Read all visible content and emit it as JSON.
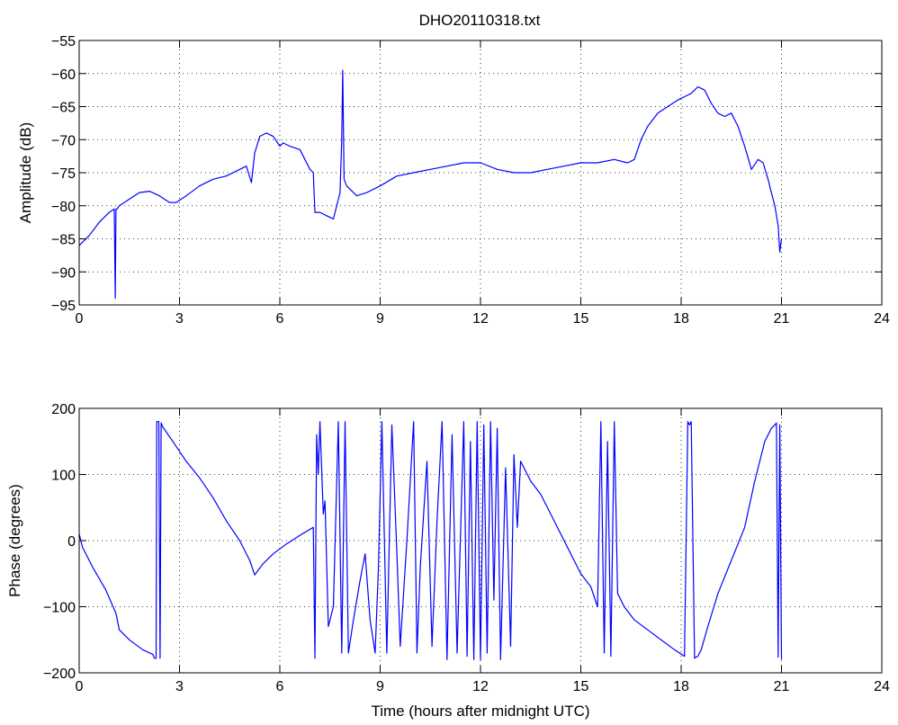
{
  "title": "DHO20110318.txt",
  "chart_data": [
    {
      "type": "line",
      "name": "amplitude",
      "ylabel": "Amplitude (dB)",
      "xlabel": "",
      "xlim": [
        0,
        24
      ],
      "ylim": [
        -95,
        -55
      ],
      "xticks": [
        0,
        3,
        6,
        9,
        12,
        15,
        18,
        21,
        24
      ],
      "xtick_labels": [
        "0",
        "3",
        "6",
        "9",
        "12",
        "15",
        "18",
        "21",
        "24"
      ],
      "yticks": [
        -95,
        -90,
        -85,
        -80,
        -75,
        -70,
        -65,
        -60,
        -55
      ],
      "ytick_labels": [
        "−95",
        "−90",
        "−85",
        "−80",
        "−75",
        "−70",
        "−65",
        "−60",
        "−55"
      ],
      "grid": true,
      "color": "#0000ff",
      "series": [
        {
          "x": [
            0.0,
            0.3,
            0.6,
            0.9,
            1.05,
            1.08,
            1.1,
            1.13,
            1.2,
            1.5,
            1.8,
            2.1,
            2.4,
            2.7,
            2.9,
            3.2,
            3.6,
            4.0,
            4.4,
            4.8,
            5.0,
            5.15,
            5.25,
            5.4,
            5.6,
            5.8,
            6.0,
            6.1,
            6.3,
            6.6,
            6.9,
            7.0,
            7.05,
            7.2,
            7.4,
            7.6,
            7.8,
            7.85,
            7.88,
            7.92,
            8.0,
            8.3,
            8.6,
            9.0,
            9.5,
            10.0,
            10.5,
            11.0,
            11.5,
            12.0,
            12.5,
            13.0,
            13.5,
            14.0,
            14.5,
            15.0,
            15.5,
            16.0,
            16.4,
            16.6,
            16.8,
            17.0,
            17.3,
            17.6,
            17.9,
            18.1,
            18.3,
            18.5,
            18.7,
            18.9,
            19.1,
            19.3,
            19.5,
            19.7,
            19.9,
            20.1,
            20.3,
            20.45,
            20.6,
            20.7,
            20.8,
            20.9,
            20.95,
            21.0
          ],
          "y": [
            -86,
            -84.5,
            -82.5,
            -81,
            -80.5,
            -94,
            -80.5,
            -80.5,
            -80,
            -79,
            -78,
            -77.8,
            -78.5,
            -79.5,
            -79.5,
            -78.5,
            -77,
            -76,
            -75.5,
            -74.5,
            -74,
            -76.5,
            -72,
            -69.5,
            -69,
            -69.5,
            -71,
            -70.5,
            -71,
            -71.5,
            -74.5,
            -75,
            -81,
            -81,
            -81.5,
            -82,
            -78,
            -70,
            -59.5,
            -76,
            -77,
            -78.5,
            -78,
            -77,
            -75.5,
            -75,
            -74.5,
            -74,
            -73.5,
            -73.5,
            -74.5,
            -75,
            -75,
            -74.5,
            -74,
            -73.5,
            -73.5,
            -73,
            -73.5,
            -73,
            -70,
            -68,
            -66,
            -65,
            -64,
            -63.5,
            -63,
            -62,
            -62.5,
            -64.5,
            -66,
            -66.5,
            -66,
            -68,
            -71,
            -74.5,
            -73,
            -73.5,
            -76,
            -78,
            -80,
            -83,
            -87,
            -85
          ]
        }
      ]
    },
    {
      "type": "line",
      "name": "phase",
      "ylabel": "Phase (degrees)",
      "xlabel": "Time (hours after midnight UTC)",
      "xlim": [
        0,
        24
      ],
      "ylim": [
        -200,
        200
      ],
      "xticks": [
        0,
        3,
        6,
        9,
        12,
        15,
        18,
        21,
        24
      ],
      "xtick_labels": [
        "0",
        "3",
        "6",
        "9",
        "12",
        "15",
        "18",
        "21",
        "24"
      ],
      "yticks": [
        -200,
        -100,
        0,
        100,
        200
      ],
      "ytick_labels": [
        "−200",
        "−100",
        "0",
        "100",
        "200"
      ],
      "grid": true,
      "color": "#0000ff",
      "series": [
        {
          "x": [
            0.0,
            0.1,
            0.4,
            0.8,
            1.1,
            1.2,
            1.5,
            1.9,
            2.2,
            2.25,
            2.3,
            2.32,
            2.38,
            2.42,
            2.45,
            2.5,
            2.8,
            3.2,
            3.6,
            4.0,
            4.4,
            4.8,
            5.1,
            5.25,
            5.35,
            5.5,
            5.8,
            6.2,
            6.6,
            7.0,
            7.05,
            7.1,
            7.15,
            7.2,
            7.3,
            7.35,
            7.45,
            7.6,
            7.75,
            7.85,
            7.95,
            8.05,
            8.2,
            8.4,
            8.55,
            8.7,
            8.85,
            8.95,
            9.05,
            9.2,
            9.35,
            9.5,
            9.6,
            9.8,
            10.0,
            10.1,
            10.2,
            10.4,
            10.55,
            10.7,
            10.85,
            11.0,
            11.15,
            11.3,
            11.5,
            11.6,
            11.7,
            11.8,
            11.9,
            12.0,
            12.1,
            12.2,
            12.3,
            12.4,
            12.5,
            12.6,
            12.75,
            12.9,
            13.0,
            13.1,
            13.2,
            13.5,
            13.8,
            14.1,
            14.4,
            14.7,
            15.0,
            15.3,
            15.5,
            15.6,
            15.7,
            15.8,
            15.9,
            16.0,
            16.1,
            16.3,
            16.6,
            17.0,
            17.4,
            17.8,
            18.1,
            18.2,
            18.25,
            18.3,
            18.4,
            18.45,
            18.5,
            18.6,
            18.8,
            19.1,
            19.5,
            19.9,
            20.2,
            20.5,
            20.7,
            20.8,
            20.85,
            20.9,
            20.95,
            21.0
          ],
          "y": [
            10,
            -10,
            -40,
            -75,
            -110,
            -135,
            -150,
            -165,
            -172,
            -178,
            -178,
            180,
            180,
            -178,
            178,
            172,
            150,
            120,
            95,
            65,
            30,
            0,
            -30,
            -52,
            -45,
            -35,
            -20,
            -5,
            8,
            20,
            -178,
            160,
            100,
            180,
            40,
            60,
            -130,
            -100,
            180,
            -170,
            180,
            -170,
            -120,
            -60,
            -20,
            -120,
            -170,
            -40,
            180,
            -170,
            175,
            -20,
            -160,
            0,
            180,
            -170,
            -40,
            120,
            -160,
            30,
            180,
            -180,
            160,
            -170,
            180,
            -175,
            150,
            -180,
            180,
            -180,
            175,
            -170,
            180,
            -90,
            170,
            -180,
            110,
            -160,
            130,
            20,
            120,
            90,
            70,
            40,
            10,
            -20,
            -50,
            -70,
            -100,
            180,
            -170,
            150,
            -175,
            180,
            -80,
            -100,
            -120,
            -135,
            -150,
            -165,
            -175,
            180,
            175,
            180,
            -178,
            -176,
            -175,
            -165,
            -130,
            -80,
            -30,
            20,
            90,
            150,
            170,
            175,
            178,
            -176,
            175,
            -180
          ]
        }
      ]
    }
  ]
}
